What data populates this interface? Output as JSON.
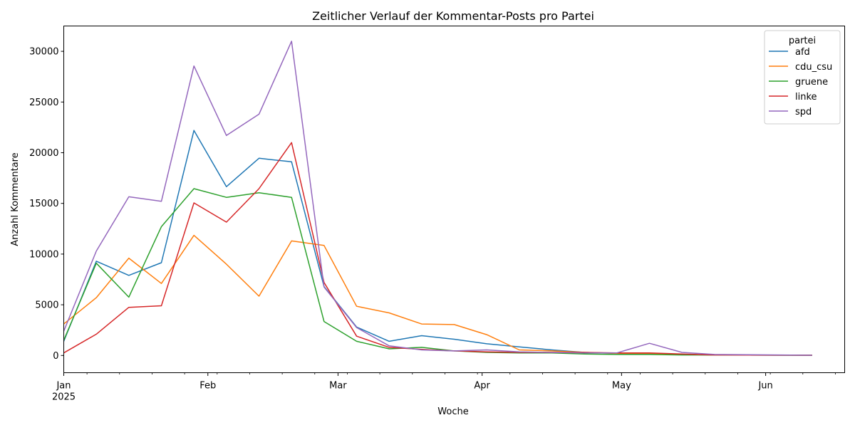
{
  "chart_data": {
    "type": "line",
    "title": "Zeitlicher Verlauf der Kommentar-Posts pro Partei",
    "xlabel": "Woche",
    "ylabel": "Anzahl Kommentare",
    "x": [
      "2025-01-01",
      "2025-01-08",
      "2025-01-15",
      "2025-01-22",
      "2025-01-29",
      "2025-02-05",
      "2025-02-12",
      "2025-02-19",
      "2025-02-26",
      "2025-03-05",
      "2025-03-12",
      "2025-03-19",
      "2025-03-26",
      "2025-04-02",
      "2025-04-09",
      "2025-04-16",
      "2025-04-23",
      "2025-04-30",
      "2025-05-07",
      "2025-05-14",
      "2025-05-21",
      "2025-05-28",
      "2025-06-04",
      "2025-06-11"
    ],
    "xlim": [
      "2025-01-01",
      "2025-06-18"
    ],
    "ylim": [
      -1700,
      32500
    ],
    "y_ticks": [
      0,
      5000,
      10000,
      15000,
      20000,
      25000,
      30000
    ],
    "y_tick_labels": [
      "0",
      "5000",
      "10000",
      "15000",
      "20000",
      "25000",
      "30000"
    ],
    "x_ticks": [
      {
        "date": "2025-01-01",
        "label": "Jan",
        "year_label": "2025"
      },
      {
        "date": "2025-02-01",
        "label": "Feb"
      },
      {
        "date": "2025-03-01",
        "label": "Mar"
      },
      {
        "date": "2025-04-01",
        "label": "Apr"
      },
      {
        "date": "2025-05-01",
        "label": "May"
      },
      {
        "date": "2025-06-01",
        "label": "Jun"
      }
    ],
    "legend": {
      "title": "partei",
      "position": "top-right"
    },
    "grid": false,
    "series": [
      {
        "name": "afd",
        "color": "#1f77b4",
        "values": [
          1400,
          9300,
          7900,
          9150,
          22200,
          16650,
          19450,
          19100,
          6800,
          2800,
          1400,
          1950,
          1600,
          1150,
          850,
          550,
          300,
          200,
          150,
          100,
          50,
          40,
          30,
          20
        ]
      },
      {
        "name": "cdu_csu",
        "color": "#ff7f0e",
        "values": [
          3100,
          5700,
          9600,
          7100,
          11850,
          9000,
          5850,
          11300,
          10850,
          4850,
          4200,
          3100,
          3050,
          2050,
          550,
          450,
          300,
          200,
          200,
          100,
          50,
          40,
          30,
          20
        ]
      },
      {
        "name": "gruene",
        "color": "#2ca02c",
        "values": [
          1500,
          9100,
          5750,
          12700,
          16450,
          15600,
          16050,
          15600,
          3350,
          1400,
          650,
          800,
          450,
          300,
          250,
          250,
          150,
          100,
          100,
          50,
          50,
          40,
          30,
          20
        ]
      },
      {
        "name": "linke",
        "color": "#d62728",
        "values": [
          250,
          2100,
          4750,
          4900,
          15050,
          13150,
          16450,
          21000,
          7200,
          1900,
          800,
          600,
          450,
          350,
          300,
          300,
          300,
          250,
          250,
          150,
          50,
          40,
          30,
          20
        ]
      },
      {
        "name": "spd",
        "color": "#9467bd",
        "values": [
          2400,
          10300,
          15650,
          15200,
          28550,
          21700,
          23800,
          31000,
          6750,
          2750,
          950,
          550,
          450,
          550,
          350,
          300,
          250,
          250,
          1200,
          300,
          100,
          80,
          50,
          20
        ]
      }
    ]
  }
}
